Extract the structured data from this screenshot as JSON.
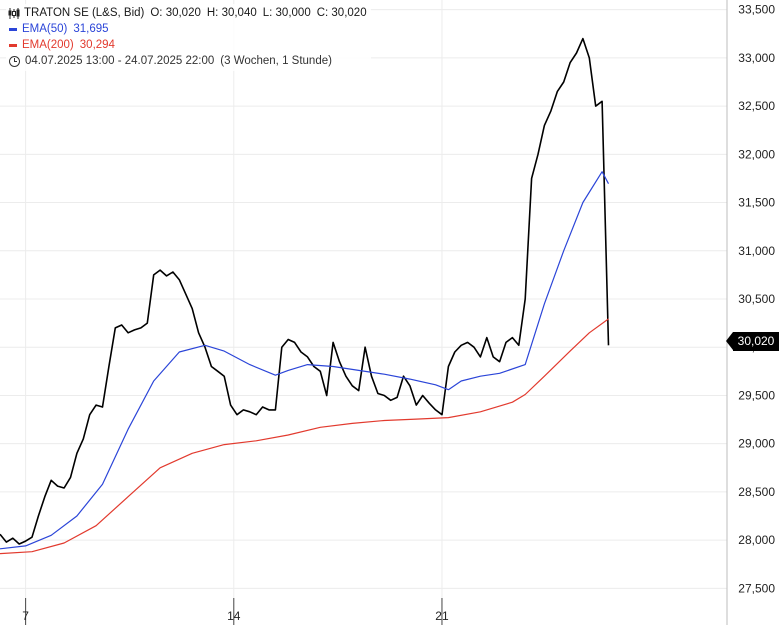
{
  "legend": {
    "instrument": "TRATON SE (L&S, Bid)",
    "open": "O: 30,020",
    "high": "H: 30,040",
    "low": "L: 30,000",
    "close": "C: 30,020",
    "ema50_label": "EMA(50)",
    "ema50_value": "31,695",
    "ema200_label": "EMA(200)",
    "ema200_value": "30,294",
    "date_range": "04.07.2025 13:00 - 24.07.2025 22:00",
    "period": "(3 Wochen, 1 Stunde)"
  },
  "colors": {
    "price": "#000000",
    "ema50": "#2b45d8",
    "ema200": "#e23a2e",
    "grid": "#ececec"
  },
  "icons": {
    "ohlc": "candlestick-icon",
    "time": "clock-icon"
  },
  "last_price_label": "30,020",
  "chart_data": {
    "type": "line",
    "title": "TRATON SE (L&S, Bid)",
    "xlabel": "",
    "ylabel": "",
    "ylim": [
      27400,
      33600
    ],
    "xlim": [
      0,
      113.5
    ],
    "grid": true,
    "legend_position": "top-left",
    "x_ticks": [
      {
        "label": "7",
        "t": 4
      },
      {
        "label": "14",
        "t": 36.5
      },
      {
        "label": "21",
        "t": 69
      }
    ],
    "y_ticks": [
      {
        "value": 27500,
        "label": "27,500"
      },
      {
        "value": 28000,
        "label": "28,000"
      },
      {
        "value": 28500,
        "label": "28,500"
      },
      {
        "value": 29000,
        "label": "29,000"
      },
      {
        "value": 29500,
        "label": "29,500"
      },
      {
        "value": 30000,
        "label": "30,000"
      },
      {
        "value": 30500,
        "label": "30,500"
      },
      {
        "value": 31000,
        "label": "31,000"
      },
      {
        "value": 31500,
        "label": "31,500"
      },
      {
        "value": 32000,
        "label": "32,000"
      },
      {
        "value": 32500,
        "label": "32,500"
      },
      {
        "value": 33000,
        "label": "33,000"
      },
      {
        "value": 33500,
        "label": "33,500"
      }
    ],
    "series": [
      {
        "name": "TRATON SE (L&S, Bid)",
        "points": [
          [
            0,
            28060
          ],
          [
            1,
            27980
          ],
          [
            2,
            28020
          ],
          [
            3,
            27960
          ],
          [
            4,
            27990
          ],
          [
            5,
            28030
          ],
          [
            6,
            28250
          ],
          [
            7,
            28450
          ],
          [
            8,
            28620
          ],
          [
            9,
            28560
          ],
          [
            10,
            28540
          ],
          [
            11,
            28650
          ],
          [
            12,
            28900
          ],
          [
            13,
            29050
          ],
          [
            14,
            29300
          ],
          [
            15,
            29400
          ],
          [
            16,
            29380
          ],
          [
            17,
            29800
          ],
          [
            18,
            30200
          ],
          [
            19,
            30230
          ],
          [
            20,
            30150
          ],
          [
            21,
            30180
          ],
          [
            22,
            30200
          ],
          [
            23,
            30250
          ],
          [
            24,
            30750
          ],
          [
            25,
            30800
          ],
          [
            26,
            30740
          ],
          [
            27,
            30780
          ],
          [
            28,
            30700
          ],
          [
            29,
            30550
          ],
          [
            30,
            30400
          ],
          [
            31,
            30150
          ],
          [
            32,
            30000
          ],
          [
            33,
            29800
          ],
          [
            34,
            29750
          ],
          [
            35,
            29700
          ],
          [
            36,
            29400
          ],
          [
            37,
            29300
          ],
          [
            38,
            29350
          ],
          [
            39,
            29330
          ],
          [
            40,
            29300
          ],
          [
            41,
            29380
          ],
          [
            42,
            29350
          ],
          [
            43,
            29350
          ],
          [
            44,
            30000
          ],
          [
            45,
            30080
          ],
          [
            46,
            30050
          ],
          [
            47,
            29950
          ],
          [
            48,
            29900
          ],
          [
            49,
            29800
          ],
          [
            50,
            29750
          ],
          [
            51,
            29500
          ],
          [
            52,
            30050
          ],
          [
            53,
            29850
          ],
          [
            54,
            29700
          ],
          [
            55,
            29600
          ],
          [
            56,
            29550
          ],
          [
            57,
            30000
          ],
          [
            58,
            29700
          ],
          [
            59,
            29520
          ],
          [
            60,
            29500
          ],
          [
            61,
            29450
          ],
          [
            62,
            29480
          ],
          [
            63,
            29700
          ],
          [
            64,
            29600
          ],
          [
            65,
            29400
          ],
          [
            66,
            29500
          ],
          [
            67,
            29420
          ],
          [
            68,
            29350
          ],
          [
            69,
            29300
          ],
          [
            70,
            29800
          ],
          [
            71,
            29950
          ],
          [
            72,
            30020
          ],
          [
            73,
            30050
          ],
          [
            74,
            30000
          ],
          [
            75,
            29900
          ],
          [
            76,
            30100
          ],
          [
            77,
            29900
          ],
          [
            78,
            29850
          ],
          [
            79,
            30050
          ],
          [
            80,
            30100
          ],
          [
            81,
            30020
          ],
          [
            82,
            30500
          ],
          [
            83,
            31750
          ],
          [
            84,
            32000
          ],
          [
            85,
            32300
          ],
          [
            86,
            32450
          ],
          [
            87,
            32650
          ],
          [
            88,
            32750
          ],
          [
            89,
            32950
          ],
          [
            90,
            33050
          ],
          [
            91,
            33200
          ],
          [
            92,
            33000
          ],
          [
            93,
            32500
          ],
          [
            94,
            32550
          ],
          [
            95,
            30020
          ]
        ]
      },
      {
        "name": "EMA(50)",
        "points": [
          [
            0,
            27910
          ],
          [
            4,
            27940
          ],
          [
            8,
            28050
          ],
          [
            12,
            28250
          ],
          [
            16,
            28580
          ],
          [
            20,
            29150
          ],
          [
            24,
            29650
          ],
          [
            28,
            29950
          ],
          [
            32,
            30020
          ],
          [
            35,
            29960
          ],
          [
            39,
            29820
          ],
          [
            43,
            29710
          ],
          [
            45,
            29760
          ],
          [
            48,
            29820
          ],
          [
            52,
            29800
          ],
          [
            56,
            29760
          ],
          [
            60,
            29720
          ],
          [
            64,
            29670
          ],
          [
            68,
            29610
          ],
          [
            70,
            29560
          ],
          [
            72,
            29650
          ],
          [
            75,
            29700
          ],
          [
            78,
            29730
          ],
          [
            82,
            29820
          ],
          [
            85,
            30450
          ],
          [
            88,
            31000
          ],
          [
            91,
            31500
          ],
          [
            94,
            31820
          ],
          [
            95,
            31695
          ]
        ]
      },
      {
        "name": "EMA(200)",
        "points": [
          [
            0,
            27860
          ],
          [
            5,
            27880
          ],
          [
            10,
            27970
          ],
          [
            15,
            28150
          ],
          [
            20,
            28450
          ],
          [
            25,
            28750
          ],
          [
            30,
            28900
          ],
          [
            35,
            28990
          ],
          [
            40,
            29030
          ],
          [
            45,
            29090
          ],
          [
            50,
            29170
          ],
          [
            55,
            29210
          ],
          [
            60,
            29240
          ],
          [
            65,
            29255
          ],
          [
            70,
            29270
          ],
          [
            75,
            29330
          ],
          [
            80,
            29430
          ],
          [
            82,
            29510
          ],
          [
            85,
            29700
          ],
          [
            89,
            29960
          ],
          [
            92,
            30150
          ],
          [
            95,
            30294
          ]
        ]
      }
    ]
  }
}
